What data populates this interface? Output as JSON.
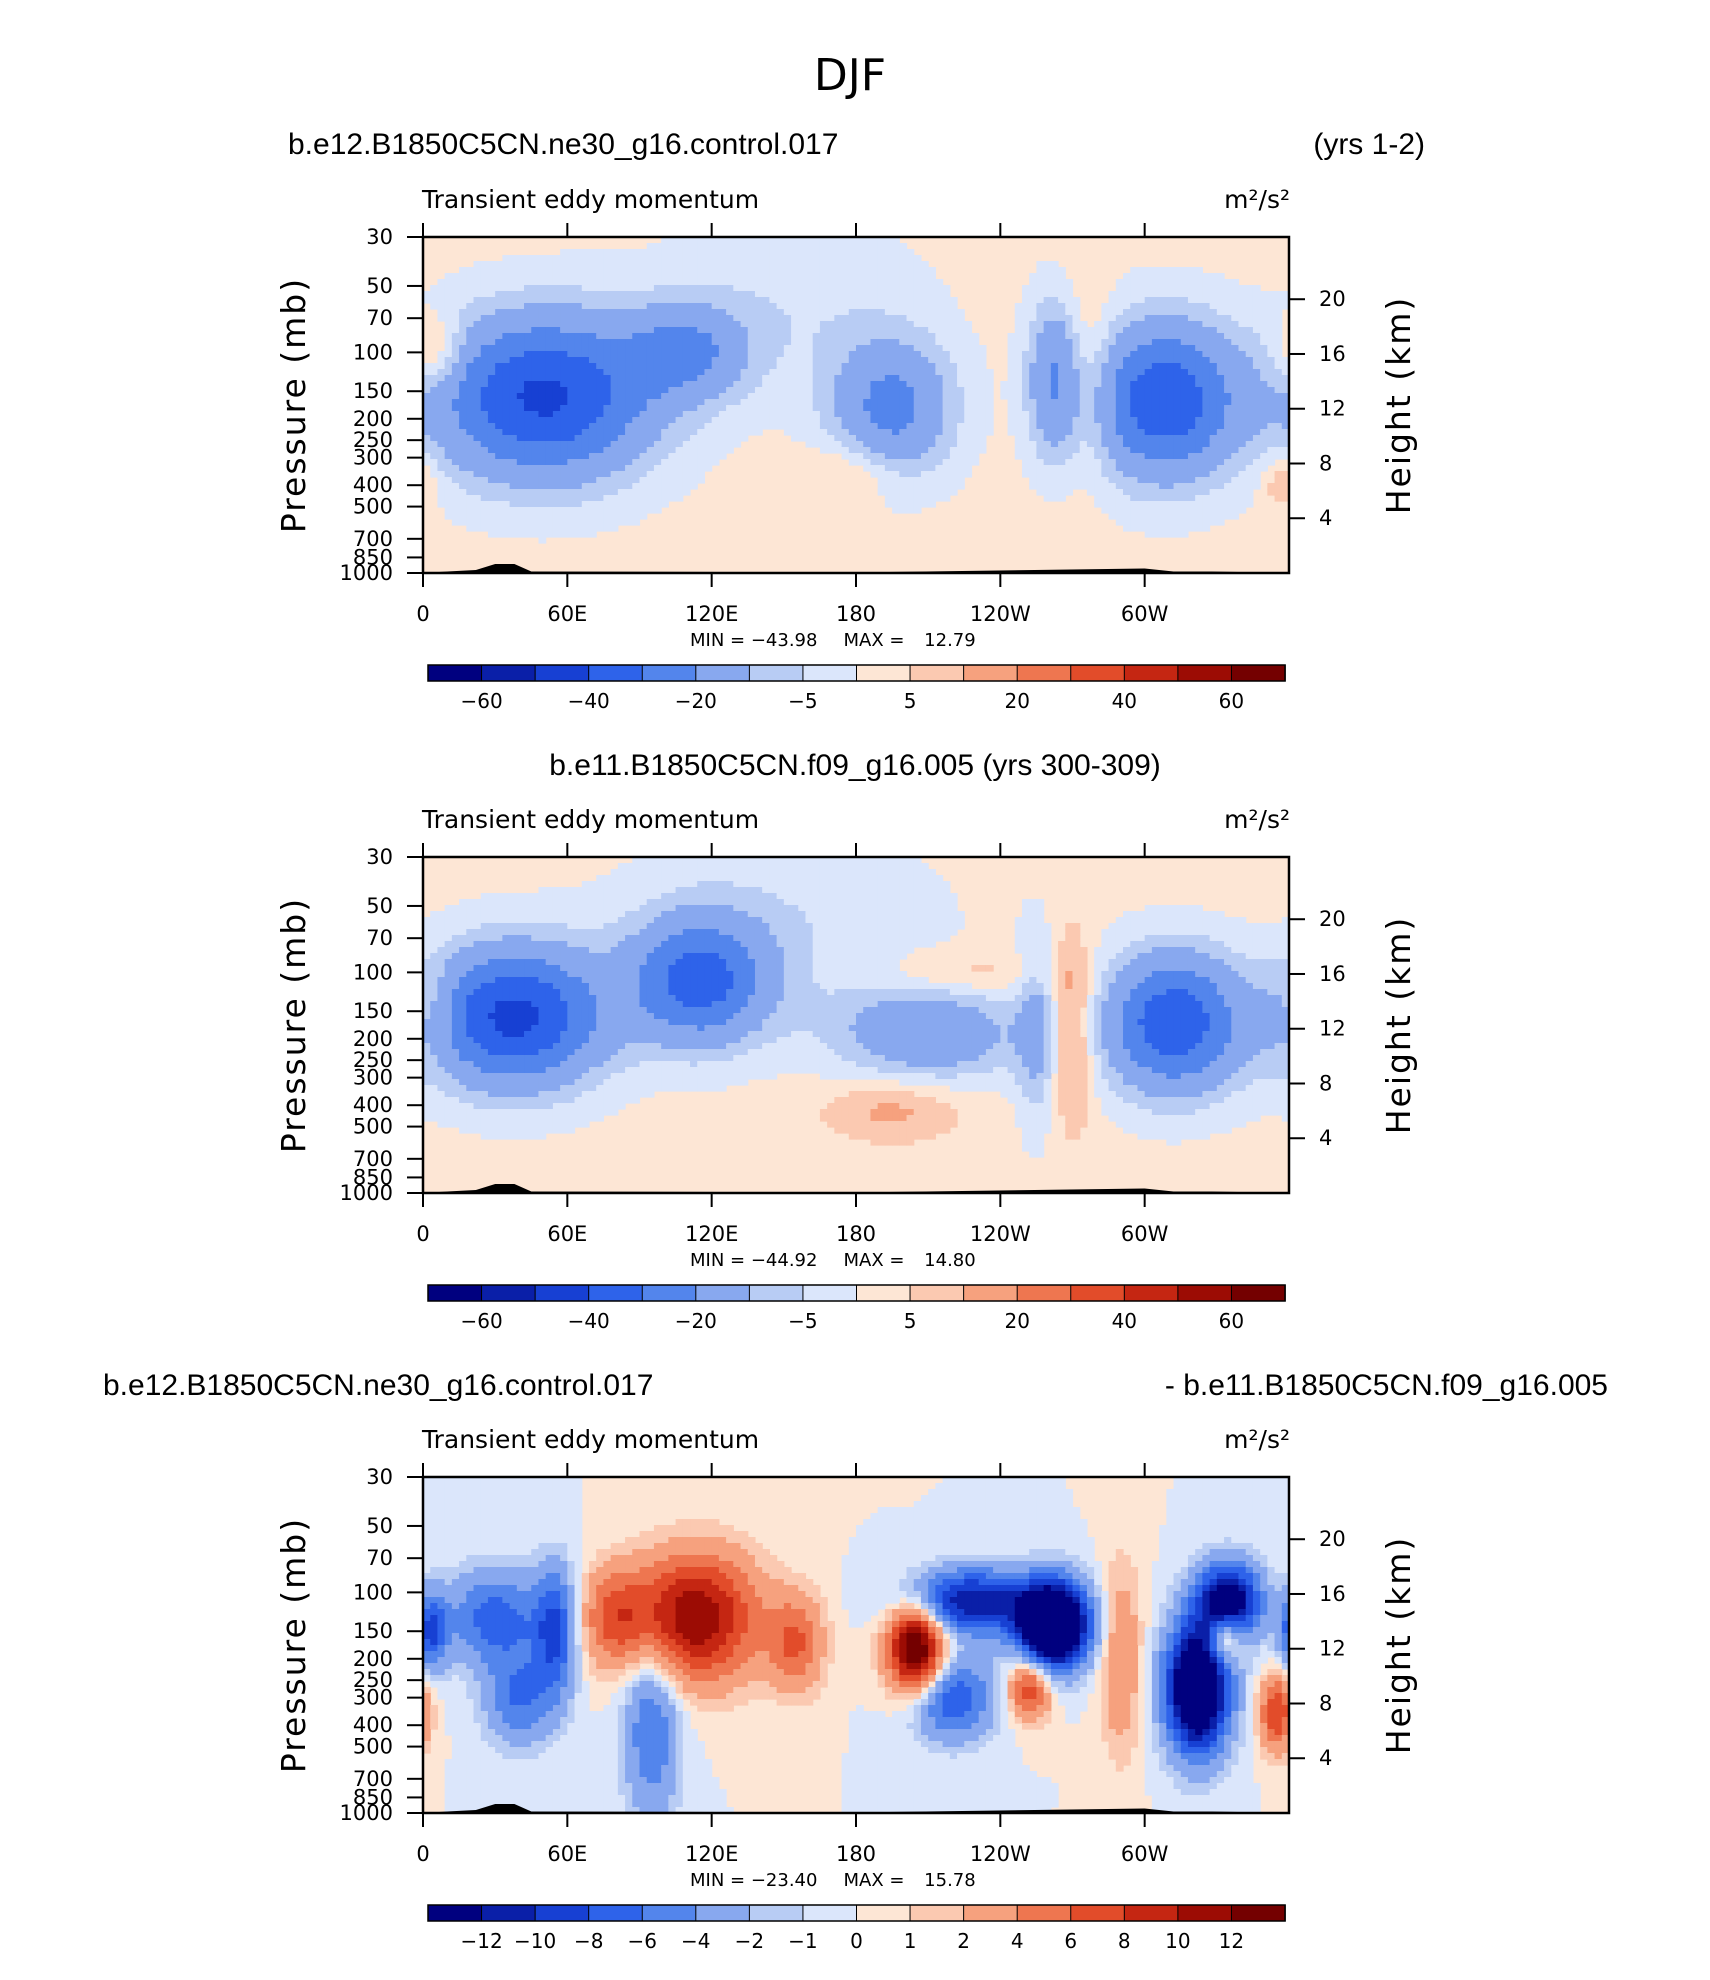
{
  "figure": {
    "title": "DJF"
  },
  "palette": [
    "#00007f",
    "#0a1fa8",
    "#1740d3",
    "#2e63ea",
    "#5385ec",
    "#88a8ef",
    "#b8ccf4",
    "#dbe6fb",
    "#fde6d5",
    "#fbc9b1",
    "#f6a17e",
    "#ee7650",
    "#e24c2a",
    "#c52612",
    "#9c0c04",
    "#740000"
  ],
  "chart_data": [
    {
      "type": "heatmap",
      "title": "Transient eddy momentum",
      "units": "m²/s²",
      "case_label": "b.e12.B1850C5CN.ne30_g16.control.017",
      "years_label": "(yrs 1-2)",
      "xlabel": "",
      "ylabel": "Pressure  (mb)",
      "ylabel_right": "Height  (km)",
      "xticks": [
        "0",
        "60E",
        "120E",
        "180",
        "120W",
        "60W"
      ],
      "yticks": [
        "30",
        "50",
        "70",
        "100",
        "150",
        "200",
        "250",
        "300",
        "400",
        "500",
        "700",
        "850",
        "1000"
      ],
      "yticks_right": [
        "20",
        "16",
        "12",
        "8",
        "4"
      ],
      "stats": {
        "min_label": "MIN = ",
        "min": "−43.98",
        "max_label": "MAX = ",
        "max": "12.79"
      },
      "colorbar_labels": [
        "−60",
        "−40",
        "−20",
        "−5",
        "5",
        "20",
        "40",
        "60"
      ],
      "features": [
        {
          "lon": 50,
          "p": 160,
          "value": -43.98,
          "dlon": 32,
          "dlogp": 0.26
        },
        {
          "lon": 110,
          "p": 100,
          "value": -20,
          "dlon": 18,
          "dlogp": 0.15
        },
        {
          "lon": 195,
          "p": 180,
          "value": -25,
          "dlon": 18,
          "dlogp": 0.22
        },
        {
          "lon": 263,
          "p": 130,
          "value": -22,
          "dlon": 8,
          "dlogp": 0.25
        },
        {
          "lon": 308,
          "p": 165,
          "value": -40,
          "dlon": 22,
          "dlogp": 0.25
        },
        {
          "lon": 152,
          "p": 60,
          "value": -6,
          "dlon": 40,
          "dlogp": 0.3
        },
        {
          "lon": 5,
          "p": 100,
          "value": 12.79,
          "dlon": 8,
          "dlogp": 0.12
        },
        {
          "lon": 275,
          "p": 130,
          "value": 10,
          "dlon": 8,
          "dlogp": 0.3
        },
        {
          "lon": 178,
          "p": 350,
          "value": 8,
          "dlon": 14,
          "dlogp": 0.1
        },
        {
          "lon": 357,
          "p": 380,
          "value": 10,
          "dlon": 6,
          "dlogp": 0.1
        }
      ],
      "topography": [
        [
          10,
          0.5
        ],
        [
          22,
          1
        ],
        [
          30,
          3
        ],
        [
          38,
          3
        ],
        [
          45,
          0.5
        ],
        [
          140,
          0.3
        ],
        [
          180,
          0.2
        ],
        [
          300,
          1.5
        ],
        [
          312,
          0.5
        ],
        [
          328,
          0.5
        ]
      ]
    },
    {
      "type": "heatmap",
      "title": "Transient eddy momentum",
      "units": "m²/s²",
      "case_label": "b.e11.B1850C5CN.f09_g16.005 (yrs 300-309)",
      "xlabel": "",
      "ylabel": "Pressure  (mb)",
      "ylabel_right": "Height  (km)",
      "xticks": [
        "0",
        "60E",
        "120E",
        "180",
        "120W",
        "60W"
      ],
      "yticks": [
        "30",
        "50",
        "70",
        "100",
        "150",
        "200",
        "250",
        "300",
        "400",
        "500",
        "700",
        "850",
        "1000"
      ],
      "yticks_right": [
        "20",
        "16",
        "12",
        "8",
        "4"
      ],
      "stats": {
        "min_label": "MIN = ",
        "min": "−44.92",
        "max_label": "MAX = ",
        "max": "14.80"
      },
      "colorbar_labels": [
        "−60",
        "−40",
        "−20",
        "−5",
        "5",
        "20",
        "40",
        "60"
      ],
      "features": [
        {
          "lon": 38,
          "p": 160,
          "value": -44.92,
          "dlon": 26,
          "dlogp": 0.22
        },
        {
          "lon": 115,
          "p": 110,
          "value": -35,
          "dlon": 20,
          "dlogp": 0.2
        },
        {
          "lon": 210,
          "p": 190,
          "value": -20,
          "dlon": 28,
          "dlogp": 0.15
        },
        {
          "lon": 312,
          "p": 170,
          "value": -40,
          "dlon": 20,
          "dlogp": 0.22
        },
        {
          "lon": 150,
          "p": 60,
          "value": -6,
          "dlon": 50,
          "dlogp": 0.3
        },
        {
          "lon": 255,
          "p": 190,
          "value": -12,
          "dlon": 6,
          "dlogp": 0.3
        },
        {
          "lon": 270,
          "p": 180,
          "value": 14.8,
          "dlon": 6,
          "dlogp": 0.3
        },
        {
          "lon": 195,
          "p": 420,
          "value": 10,
          "dlon": 20,
          "dlogp": 0.1
        },
        {
          "lon": 5,
          "p": 150,
          "value": 8,
          "dlon": 6,
          "dlogp": 0.15
        },
        {
          "lon": 225,
          "p": 100,
          "value": 7,
          "dlon": 25,
          "dlogp": 0.07
        }
      ],
      "topography": [
        [
          10,
          0.5
        ],
        [
          22,
          1
        ],
        [
          30,
          3
        ],
        [
          38,
          3
        ],
        [
          45,
          0.5
        ],
        [
          140,
          0.3
        ],
        [
          180,
          0.2
        ],
        [
          300,
          1.5
        ],
        [
          312,
          0.5
        ],
        [
          328,
          0.5
        ]
      ]
    },
    {
      "type": "heatmap",
      "title": "Transient eddy momentum",
      "units": "m²/s²",
      "case_label": "b.e12.B1850C5CN.ne30_g16.control.017",
      "case_label_right": "- b.e11.B1850C5CN.f09_g16.005",
      "xlabel": "",
      "ylabel": "Pressure  (mb)",
      "ylabel_right": "Height  (km)",
      "xticks": [
        "0",
        "60E",
        "120E",
        "180",
        "120W",
        "60W"
      ],
      "yticks": [
        "30",
        "50",
        "70",
        "100",
        "150",
        "200",
        "250",
        "300",
        "400",
        "500",
        "700",
        "850",
        "1000"
      ],
      "yticks_right": [
        "20",
        "16",
        "12",
        "8",
        "4"
      ],
      "stats": {
        "min_label": "MIN = ",
        "min": "−23.40",
        "max_label": "MAX = ",
        "max": "15.78"
      },
      "colorbar_labels": [
        "−12",
        "−10",
        "−8",
        "−6",
        "−4",
        "−2",
        "−1",
        "0",
        "1",
        "2",
        "4",
        "6",
        "8",
        "10",
        "12"
      ],
      "features": [
        {
          "lon": 30,
          "p": 130,
          "value": -7,
          "dlon": 14,
          "dlogp": 0.15
        },
        {
          "lon": 55,
          "p": 150,
          "value": -8,
          "dlon": 6,
          "dlogp": 0.2
        },
        {
          "lon": 40,
          "p": 300,
          "value": -6,
          "dlon": 10,
          "dlogp": 0.15
        },
        {
          "lon": 3,
          "p": 150,
          "value": -8,
          "dlon": 5,
          "dlogp": 0.12
        },
        {
          "lon": 113,
          "p": 130,
          "value": 12,
          "dlon": 18,
          "dlogp": 0.2
        },
        {
          "lon": 80,
          "p": 130,
          "value": 6,
          "dlon": 10,
          "dlogp": 0.15
        },
        {
          "lon": 155,
          "p": 170,
          "value": 6,
          "dlon": 8,
          "dlogp": 0.15
        },
        {
          "lon": 205,
          "p": 180,
          "value": 15.78,
          "dlon": 8,
          "dlogp": 0.14
        },
        {
          "lon": 228,
          "p": 110,
          "value": -12,
          "dlon": 18,
          "dlogp": 0.1
        },
        {
          "lon": 262,
          "p": 140,
          "value": -23.4,
          "dlon": 10,
          "dlogp": 0.13
        },
        {
          "lon": 252,
          "p": 270,
          "value": 8,
          "dlon": 6,
          "dlogp": 0.1
        },
        {
          "lon": 220,
          "p": 300,
          "value": -8,
          "dlon": 12,
          "dlogp": 0.13
        },
        {
          "lon": 322,
          "p": 270,
          "value": -20,
          "dlon": 9,
          "dlogp": 0.2
        },
        {
          "lon": 335,
          "p": 110,
          "value": -15,
          "dlon": 9,
          "dlogp": 0.12
        },
        {
          "lon": 333,
          "p": 160,
          "value": 9,
          "dlon": 5,
          "dlogp": 0.08
        },
        {
          "lon": 355,
          "p": 350,
          "value": 8,
          "dlon": 5,
          "dlogp": 0.12
        },
        {
          "lon": 95,
          "p": 400,
          "value": -6,
          "dlon": 8,
          "dlogp": 0.3
        },
        {
          "lon": 290,
          "p": 200,
          "value": 4,
          "dlon": 6,
          "dlogp": 0.3
        }
      ],
      "topography": [
        [
          10,
          0.5
        ],
        [
          22,
          1
        ],
        [
          30,
          3
        ],
        [
          38,
          3
        ],
        [
          45,
          0.5
        ],
        [
          140,
          0.3
        ],
        [
          180,
          0.2
        ],
        [
          300,
          1.5
        ],
        [
          312,
          0.5
        ],
        [
          328,
          0.5
        ]
      ]
    }
  ]
}
